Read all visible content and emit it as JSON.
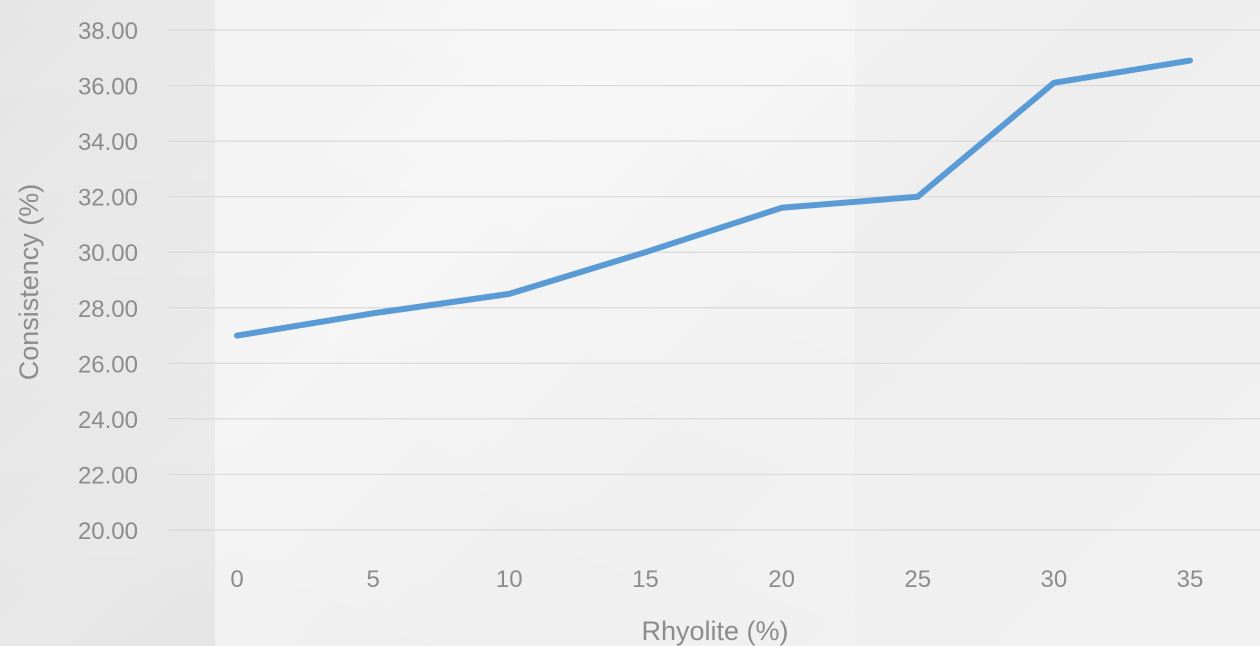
{
  "chart_data": {
    "type": "line",
    "x": [
      0,
      5,
      10,
      15,
      20,
      25,
      30,
      35
    ],
    "series": [
      {
        "values": [
          27.0,
          27.8,
          28.5,
          30.0,
          31.6,
          32.0,
          36.1,
          36.9
        ]
      }
    ],
    "xlabel": "Rhyolite (%)",
    "ylabel": "Consistency (%)",
    "ylim": [
      20,
      38
    ],
    "yticks": [
      "20.00",
      "22.00",
      "24.00",
      "26.00",
      "28.00",
      "30.00",
      "32.00",
      "34.00",
      "36.00",
      "38.00"
    ],
    "xticks": [
      "0",
      "5",
      "10",
      "15",
      "20",
      "25",
      "30",
      "35"
    ],
    "grid": "horizontal",
    "legend": "none",
    "line_color": "#5b9bd5",
    "grid_color": "#d9d9d9",
    "text_color": "#8c8c8c"
  }
}
